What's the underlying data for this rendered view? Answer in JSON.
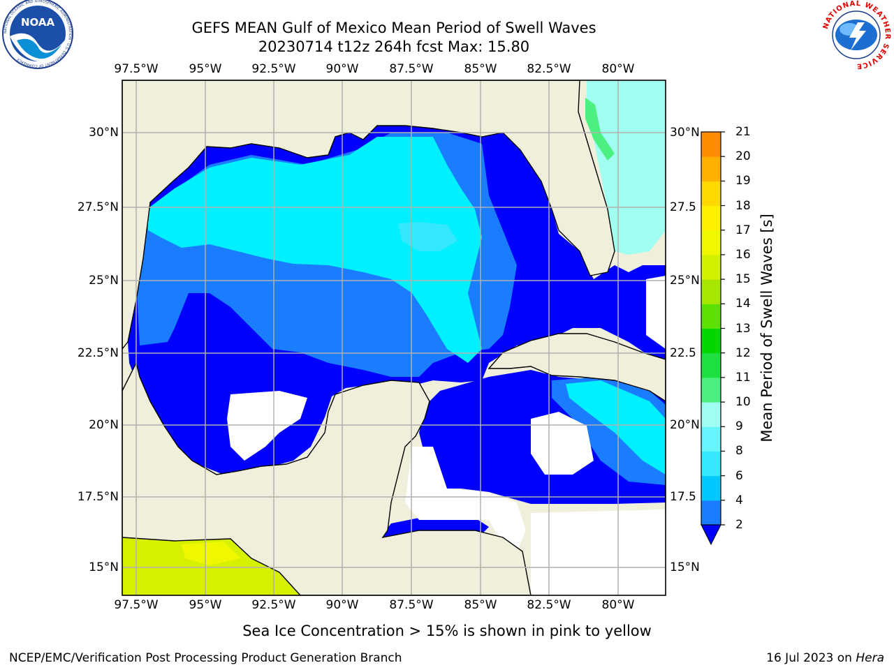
{
  "title_line1": "GEFS MEAN Gulf of Mexico Mean Period of Swell Waves",
  "title_line2": "20230714 t12z 264h fcst   Max: 15.80",
  "lon_ticks": [
    "97.5°W",
    "95°W",
    "92.5°W",
    "90°W",
    "87.5°W",
    "85°W",
    "82.5°W",
    "80°W"
  ],
  "lat_ticks": [
    "30°N",
    "27.5°N",
    "25°N",
    "22.5°N",
    "20°N",
    "17.5°N",
    "15°N"
  ],
  "lat_ticks_right": [
    "30°N",
    "27.5",
    "25°N",
    "22.5",
    "20°N",
    "17.5",
    "15°N"
  ],
  "colorbar": {
    "label": "Mean Period of Swell Waves [s]",
    "ticks": [
      "21",
      "20",
      "19",
      "18",
      "17",
      "16",
      "15",
      "14",
      "13",
      "12",
      "11",
      "10",
      "9",
      "8",
      "6",
      "4",
      "2"
    ],
    "colors": [
      "#1a7dff",
      "#00c8ff",
      "#33e8ff",
      "#66f5ff",
      "#a0fff0",
      "#4cf080",
      "#1ee040",
      "#00d800",
      "#5de000",
      "#a6e600",
      "#d2f000",
      "#f0f800",
      "#fff000",
      "#ffd800",
      "#ffb000",
      "#ff8c00",
      "#ff6000",
      "#ff3800",
      "#ff1000"
    ],
    "extend_color": "#0000ff"
  },
  "sea_ice_note": "Sea Ice Concentration > 15% is shown in pink to yellow",
  "footer_left": "NCEP/EMC/Verification Post Processing Product Generation Branch",
  "footer_date": "16 Jul 2023 on",
  "footer_host": "Hera",
  "logos": {
    "left": "NOAA",
    "left_ring": "NATIONAL OCEANIC AND ATMOSPHERIC ADMINISTRATION · U.S. DEPARTMENT OF COMMERCE",
    "right_ring": "NATIONAL WEATHER SERVICE"
  },
  "colors": {
    "land": "#efefdc",
    "ocean_deep": "#0000ff",
    "period_2_4": "#1a7dff",
    "period_4_6": "#00f0ff",
    "period_6_8": "#33e8ff",
    "period_8_9": "#a0fff0",
    "no_data": "#ffffff",
    "grid": "#b0b0b0"
  }
}
